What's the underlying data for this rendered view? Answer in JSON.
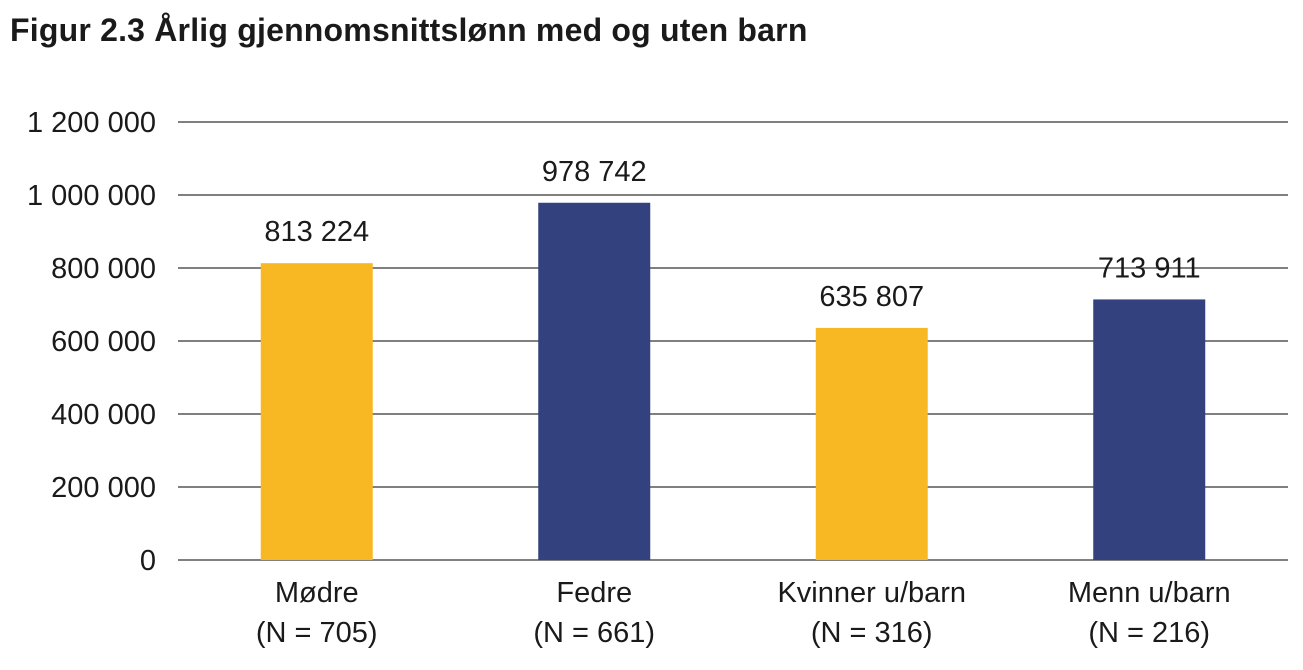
{
  "title": "Figur 2.3 Årlig gjennomsnittslønn med og uten barn",
  "chart_data": {
    "type": "bar",
    "title": "Figur 2.3 Årlig gjennomsnittslønn med og uten barn",
    "xlabel": "",
    "ylabel": "",
    "ylim": [
      0,
      1200000
    ],
    "yticks": [
      0,
      200000,
      400000,
      600000,
      800000,
      1000000,
      1200000
    ],
    "ytick_labels": [
      "0",
      "200 000",
      "400 000",
      "600 000",
      "800 000",
      "1 000 000",
      "1 200 000"
    ],
    "grid": true,
    "categories": [
      {
        "name": "Mødre",
        "n": "(N = 705)"
      },
      {
        "name": "Fedre",
        "n": "(N = 661)"
      },
      {
        "name": "Kvinner u/barn",
        "n": "(N = 316)"
      },
      {
        "name": "Menn u/barn",
        "n": "(N = 216)"
      }
    ],
    "values": [
      813224,
      978742,
      635807,
      713911
    ],
    "value_labels": [
      "813 224",
      "978 742",
      "635 807",
      "713 911"
    ],
    "colors": [
      "#F8B823",
      "#33417F",
      "#F8B823",
      "#33417F"
    ],
    "gridline_color": "#000000"
  }
}
